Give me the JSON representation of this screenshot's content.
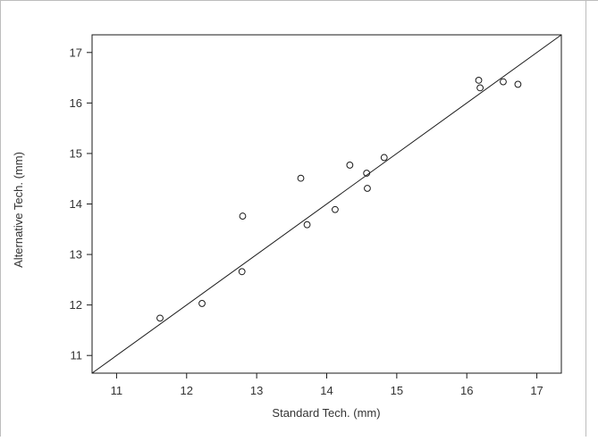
{
  "chart_data": {
    "type": "scatter",
    "xlabel": "Standard Tech. (mm)",
    "ylabel": "Alternative Tech. (mm)",
    "xlim": [
      10.65,
      17.35
    ],
    "ylim": [
      10.65,
      17.35
    ],
    "x_ticks": [
      11,
      12,
      13,
      14,
      15,
      16,
      17
    ],
    "y_ticks": [
      11,
      12,
      13,
      14,
      15,
      16,
      17
    ],
    "grid": false,
    "reference_line": {
      "type": "identity",
      "from": [
        10.65,
        10.65
      ],
      "to": [
        17.35,
        17.35
      ]
    },
    "series": [
      {
        "marker": "open-circle",
        "points": [
          {
            "x": 11.62,
            "y": 11.74
          },
          {
            "x": 12.22,
            "y": 12.03
          },
          {
            "x": 12.79,
            "y": 12.66
          },
          {
            "x": 12.8,
            "y": 13.76
          },
          {
            "x": 13.63,
            "y": 14.51
          },
          {
            "x": 13.72,
            "y": 13.59
          },
          {
            "x": 14.12,
            "y": 13.89
          },
          {
            "x": 14.33,
            "y": 14.77
          },
          {
            "x": 14.57,
            "y": 14.61
          },
          {
            "x": 14.58,
            "y": 14.31
          },
          {
            "x": 14.82,
            "y": 14.92
          },
          {
            "x": 16.17,
            "y": 16.45
          },
          {
            "x": 16.19,
            "y": 16.3
          },
          {
            "x": 16.52,
            "y": 16.42
          },
          {
            "x": 16.73,
            "y": 16.37
          }
        ]
      }
    ],
    "colors": {
      "axis": "#1a1a1a",
      "text": "#333333",
      "marker": "#1a1a1a",
      "background": "#ffffff"
    }
  }
}
